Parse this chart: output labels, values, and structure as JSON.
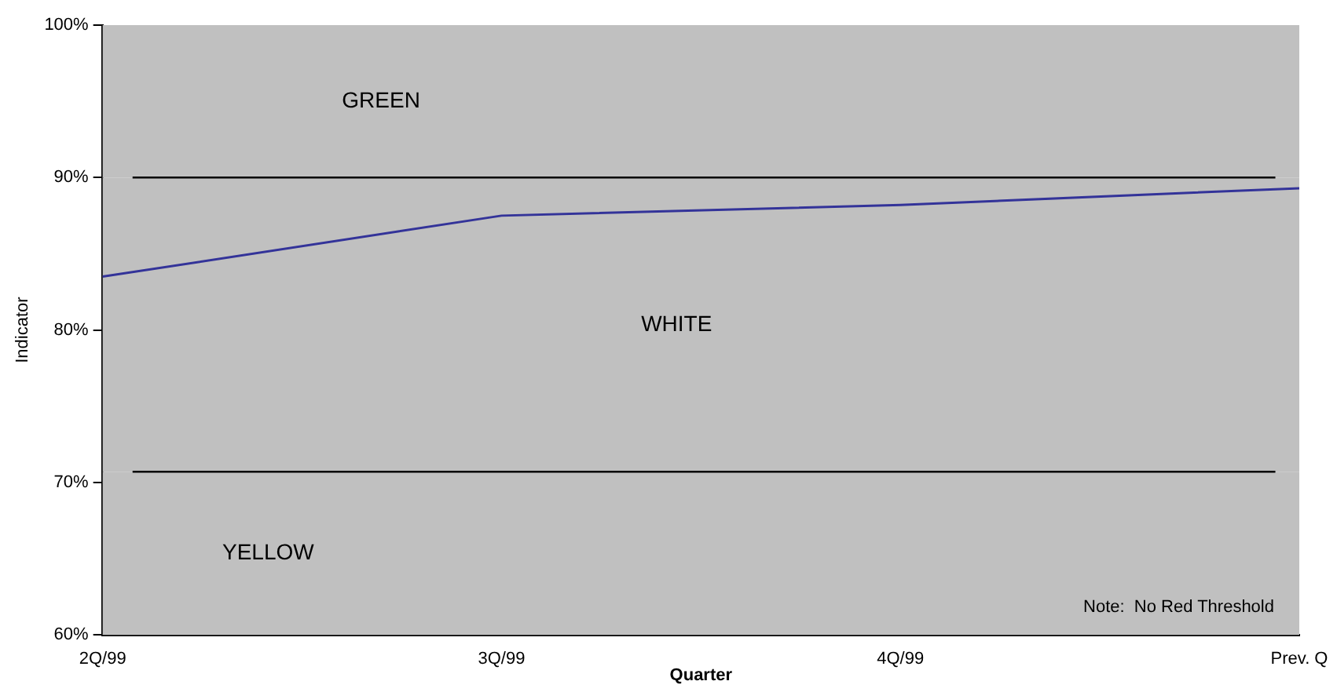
{
  "chart_data": {
    "type": "line",
    "xlabel": "Quarter",
    "ylabel": "Indicator",
    "categories": [
      "2Q/99",
      "3Q/99",
      "4Q/99",
      "Prev. Q"
    ],
    "series": [
      {
        "color": "#333399",
        "values": [
          83.5,
          87.5,
          88.2,
          89.3
        ]
      }
    ],
    "ylim": [
      60,
      100
    ],
    "yticks": [
      {
        "value": 60,
        "label": "60%"
      },
      {
        "value": 70,
        "label": "70%"
      },
      {
        "value": 80,
        "label": "80%"
      },
      {
        "value": 90,
        "label": "90%"
      },
      {
        "value": 100,
        "label": "100%"
      }
    ],
    "ref_lines": [
      {
        "axis": "y",
        "value": 90,
        "color": "#000000"
      },
      {
        "axis": "y",
        "value": 70.7,
        "color": "#000000"
      }
    ],
    "bands": [
      {
        "axis": "y",
        "from": 90,
        "to": 100,
        "label": "GREEN",
        "color": "#c0c0c0"
      },
      {
        "axis": "y",
        "from": 70.7,
        "to": 90,
        "label": "WHITE",
        "color": "#c0c0c0"
      },
      {
        "axis": "y",
        "from": 60,
        "to": 70.7,
        "label": "YELLOW",
        "color": "#c0c0c0"
      }
    ],
    "annotations": [
      "Note:  No Red Threshold"
    ],
    "grid": false,
    "legend": false,
    "marker": "none",
    "line_style": "solid"
  }
}
